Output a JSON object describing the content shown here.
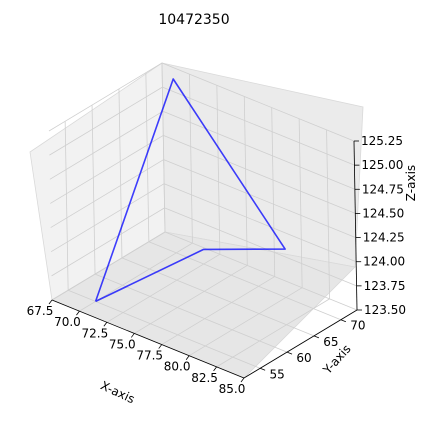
{
  "chart_data": {
    "type": "line",
    "projection": "3d",
    "title": "10472350",
    "xlabel": "X-axis",
    "ylabel": "Y-axis",
    "zlabel": "Z-axis",
    "grid": true,
    "x_ticks": [
      "67.5",
      "70.0",
      "72.5",
      "75.0",
      "77.5",
      "80.0",
      "82.5",
      "85.0"
    ],
    "y_ticks": [
      "55",
      "60",
      "65",
      "70"
    ],
    "z_ticks": [
      "123.50",
      "123.75",
      "124.00",
      "124.25",
      "124.50",
      "124.75",
      "125.00",
      "125.25"
    ],
    "xlim": [
      67.5,
      85.0
    ],
    "ylim": [
      52.0,
      73.0
    ],
    "zlim": [
      123.5,
      125.25
    ],
    "series": [
      {
        "color": "#0000ff",
        "x": [
          70.0,
          70.0,
          80.0,
          80.0,
          70.0
        ],
        "y": [
          55.0,
          70.0,
          70.0,
          55.0,
          55.0
        ],
        "z": [
          123.5,
          125.3,
          124.0,
          124.5,
          123.5
        ]
      }
    ]
  }
}
